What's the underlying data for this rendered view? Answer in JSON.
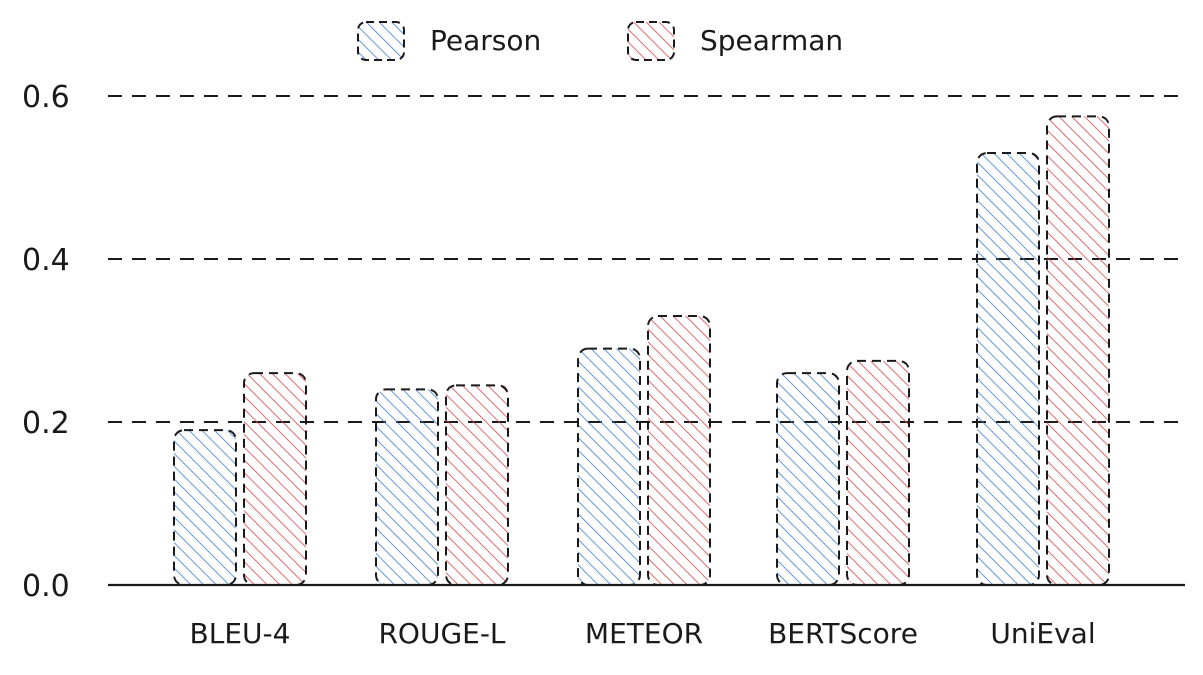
{
  "chart_data": {
    "type": "bar",
    "categories": [
      "BLEU-4",
      "ROUGE-L",
      "METEOR",
      "BERTScore",
      "UniEval"
    ],
    "series": [
      {
        "name": "Pearson",
        "color": "#3b7fd0",
        "values": [
          0.19,
          0.24,
          0.29,
          0.26,
          0.53
        ]
      },
      {
        "name": "Spearman",
        "color": "#d9474a",
        "values": [
          0.26,
          0.245,
          0.33,
          0.275,
          0.575
        ]
      }
    ],
    "yticks": [
      "0.0",
      "0.2",
      "0.4",
      "0.6"
    ],
    "ytick_values": [
      0,
      0.2,
      0.4,
      0.6
    ],
    "ylim": [
      0,
      0.6
    ],
    "grid": "dashed horizontal",
    "legend": "top-center"
  }
}
